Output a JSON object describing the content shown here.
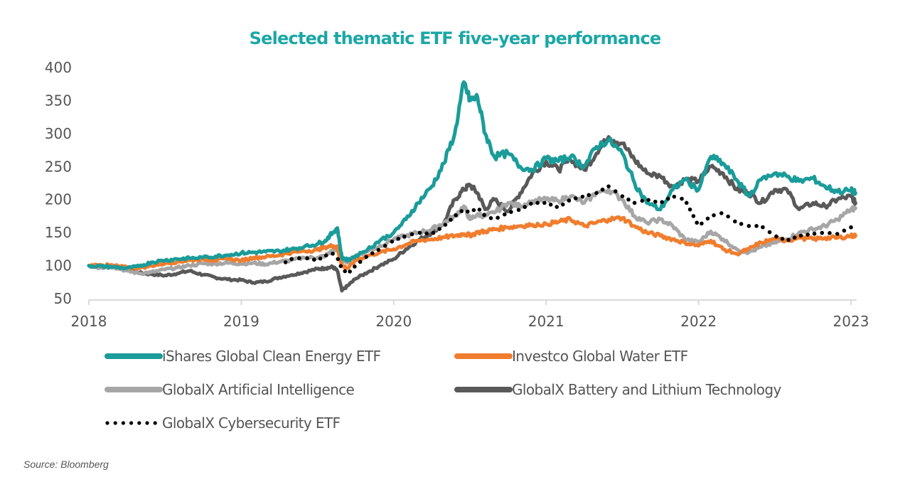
{
  "chart_data": {
    "type": "line",
    "title": "Selected thematic ETF five-year performance",
    "xlabel": "",
    "ylabel": "",
    "ylim": [
      50,
      400
    ],
    "xlim": [
      2018,
      2023
    ],
    "yticks": [
      50,
      100,
      150,
      200,
      250,
      300,
      350,
      400
    ],
    "xticks": [
      "2018",
      "2019",
      "2020",
      "2021",
      "2022",
      "2023"
    ],
    "grid": false,
    "legend_position": "bottom",
    "x": [
      2018.0,
      2018.08,
      2018.16,
      2018.25,
      2018.33,
      2018.41,
      2018.5,
      2018.58,
      2018.66,
      2018.75,
      2018.83,
      2018.91,
      2019.0,
      2019.08,
      2019.16,
      2019.25,
      2019.33,
      2019.41,
      2019.5,
      2019.55,
      2019.6,
      2019.63,
      2019.66,
      2019.7,
      2019.75,
      2019.83,
      2019.91,
      2020.0,
      2020.08,
      2020.16,
      2020.25,
      2020.33,
      2020.4,
      2020.46,
      2020.5,
      2020.55,
      2020.6,
      2020.66,
      2020.75,
      2020.83,
      2020.91,
      2021.0,
      2021.08,
      2021.16,
      2021.25,
      2021.33,
      2021.41,
      2021.5,
      2021.58,
      2021.66,
      2021.75,
      2021.83,
      2021.91,
      2022.0,
      2022.08,
      2022.16,
      2022.25,
      2022.33,
      2022.41,
      2022.5,
      2022.58,
      2022.66,
      2022.75,
      2022.83,
      2022.91,
      2023.0,
      2023.03
    ],
    "series": [
      {
        "name": "iShares Global Clean Energy ETF",
        "color": "#1a9c9a",
        "style": "solid",
        "values": [
          100,
          99,
          98,
          96,
          99,
          105,
          108,
          110,
          111,
          112,
          114,
          116,
          119,
          120,
          121,
          122,
          125,
          128,
          133,
          138,
          150,
          157,
          112,
          108,
          115,
          125,
          138,
          150,
          170,
          195,
          220,
          255,
          300,
          378,
          350,
          355,
          300,
          265,
          270,
          250,
          245,
          262,
          258,
          265,
          250,
          280,
          290,
          270,
          225,
          195,
          185,
          215,
          230,
          215,
          265,
          255,
          230,
          205,
          230,
          240,
          235,
          228,
          232,
          220,
          212,
          214,
          210
        ]
      },
      {
        "name": "Investco Global Water ETF",
        "color": "#f07d2e",
        "style": "solid",
        "values": [
          100,
          101,
          100,
          97,
          96,
          100,
          103,
          106,
          108,
          110,
          108,
          110,
          108,
          112,
          113,
          116,
          120,
          122,
          124,
          128,
          130,
          127,
          100,
          96,
          108,
          115,
          120,
          125,
          132,
          138,
          140,
          143,
          145,
          148,
          146,
          150,
          152,
          155,
          158,
          160,
          162,
          163,
          166,
          170,
          160,
          165,
          170,
          172,
          160,
          150,
          145,
          140,
          135,
          130,
          138,
          125,
          118,
          125,
          135,
          140,
          138,
          142,
          140,
          142,
          142,
          145,
          145
        ]
      },
      {
        "name": "GlobalX Artificial Intelligence",
        "color": "#a6a6a6",
        "style": "solid",
        "values": [
          100,
          97,
          98,
          92,
          88,
          90,
          94,
          97,
          100,
          103,
          103,
          104,
          103,
          104,
          102,
          106,
          108,
          112,
          112,
          115,
          123,
          124,
          108,
          106,
          115,
          122,
          130,
          140,
          145,
          150,
          155,
          165,
          175,
          190,
          170,
          178,
          175,
          180,
          195,
          190,
          198,
          200,
          198,
          205,
          195,
          210,
          215,
          200,
          175,
          165,
          170,
          160,
          140,
          135,
          152,
          140,
          125,
          120,
          128,
          135,
          140,
          150,
          155,
          160,
          170,
          185,
          187
        ]
      },
      {
        "name": "GlobalX Battery and Lithium Technology",
        "color": "#595959",
        "style": "solid",
        "values": [
          100,
          97,
          99,
          95,
          89,
          87,
          85,
          88,
          92,
          86,
          82,
          79,
          78,
          74,
          76,
          82,
          86,
          90,
          95,
          96,
          98,
          92,
          62,
          70,
          80,
          90,
          100,
          110,
          125,
          138,
          150,
          165,
          200,
          215,
          222,
          210,
          185,
          200,
          182,
          210,
          240,
          258,
          245,
          260,
          245,
          270,
          295,
          285,
          260,
          240,
          235,
          220,
          230,
          228,
          250,
          240,
          215,
          210,
          195,
          215,
          215,
          185,
          195,
          190,
          200,
          205,
          195
        ]
      },
      {
        "name": "GlobalX Cybersecurity ETF",
        "color": "#000000",
        "style": "dotted",
        "start_x": 2019.25,
        "values": [
          null,
          null,
          null,
          null,
          null,
          null,
          null,
          null,
          null,
          null,
          null,
          null,
          null,
          null,
          null,
          100,
          110,
          112,
          108,
          115,
          118,
          112,
          95,
          88,
          100,
          115,
          125,
          138,
          145,
          150,
          148,
          160,
          175,
          185,
          180,
          188,
          175,
          170,
          180,
          185,
          195,
          195,
          188,
          200,
          205,
          210,
          220,
          205,
          195,
          200,
          195,
          205,
          200,
          160,
          175,
          180,
          165,
          160,
          160,
          145,
          138,
          145,
          148,
          150,
          148,
          158,
          160
        ]
      }
    ]
  },
  "source": "Source: Bloomberg"
}
